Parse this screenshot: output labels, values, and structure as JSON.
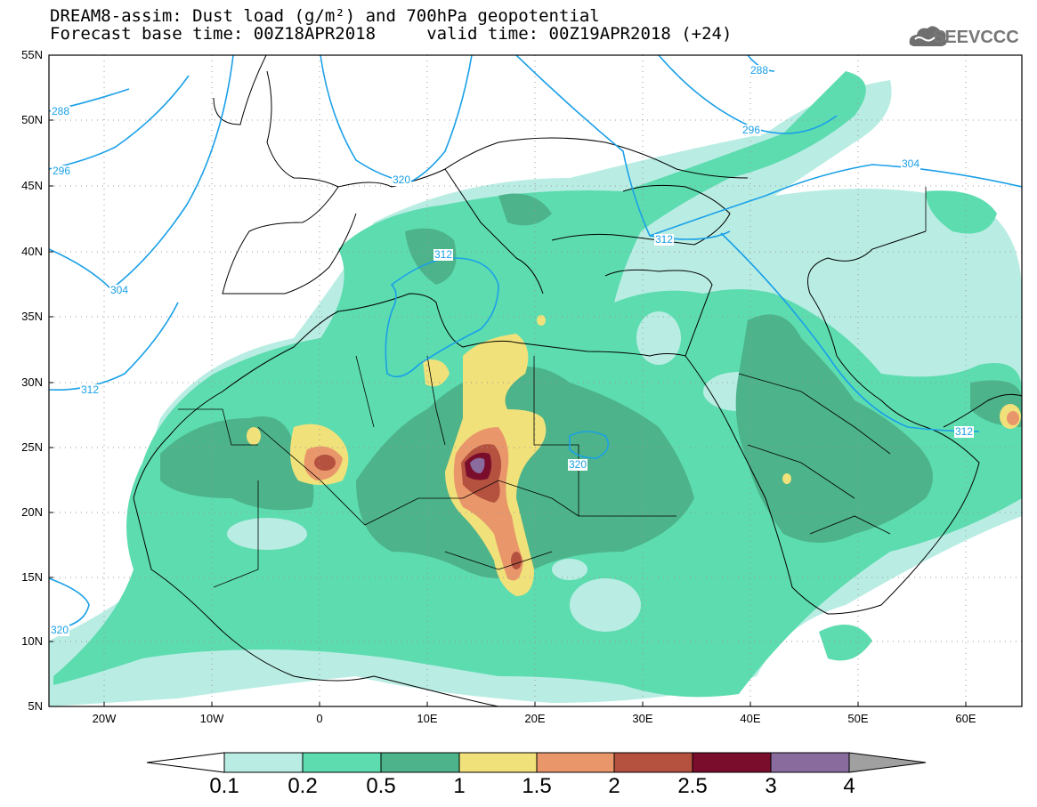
{
  "title": {
    "line1": "DREAM8-assim: Dust load (g/m²) and 700hPa geopotential",
    "line2": "Forecast base time: 00Z18APR2018     valid time: 00Z19APR2018 (+24)"
  },
  "logo": {
    "text": "SEEVCCC",
    "icon": "cloud-icon"
  },
  "map": {
    "lat_labels": [
      "55N",
      "50N",
      "45N",
      "40N",
      "35N",
      "30N",
      "25N",
      "20N",
      "15N",
      "10N",
      "5N"
    ],
    "lon_labels": [
      "20W",
      "10W",
      "0",
      "10E",
      "20E",
      "30E",
      "40E",
      "50E",
      "60E"
    ],
    "contour_color": "#1aa0e8",
    "contour_labels": [
      {
        "id": "c288a",
        "text": "288"
      },
      {
        "id": "c288b",
        "text": "288"
      },
      {
        "id": "c296a",
        "text": "296"
      },
      {
        "id": "c296b",
        "text": "296"
      },
      {
        "id": "c304a",
        "text": "304"
      },
      {
        "id": "c304b",
        "text": "304"
      },
      {
        "id": "c312a",
        "text": "312"
      },
      {
        "id": "c312b",
        "text": "312"
      },
      {
        "id": "c312c",
        "text": "312"
      },
      {
        "id": "c312d",
        "text": "312"
      },
      {
        "id": "c320a",
        "text": "320"
      },
      {
        "id": "c320b",
        "text": "320"
      },
      {
        "id": "c320c",
        "text": "320"
      }
    ]
  },
  "colorbar": {
    "labels": [
      "0.1",
      "0.2",
      "0.5",
      "1",
      "1.5",
      "2",
      "2.5",
      "3",
      "4"
    ],
    "colors": [
      "#ffffff",
      "#b9ede3",
      "#5ddcb0",
      "#4db38a",
      "#f1e17a",
      "#e9976a",
      "#b4513f",
      "#7a0c2c",
      "#8a6b9e",
      "#a0a0a0"
    ]
  }
}
